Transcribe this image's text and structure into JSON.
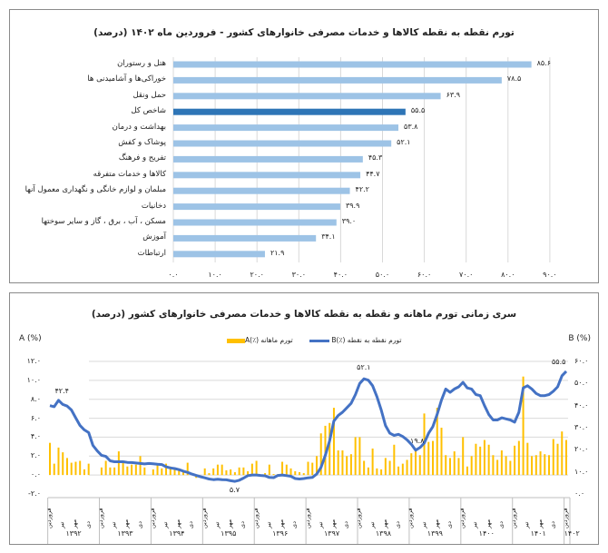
{
  "chart_data": [
    {
      "type": "bar",
      "orientation": "horizontal",
      "title": "تورم نقطه به نقطه کالاها و خدمات مصرفی خانوارهای کشور - فروردین ماه ۱۴۰۲ (درصد)",
      "categories": [
        "هتل و رستوران",
        "خوراکی‌ها و آشامیدنی ها",
        "حمل ونقل",
        "شاخص کل",
        "بهداشت و درمان",
        "پوشاک و کفش",
        "تفریح و فرهنگ",
        "کالاها و خدمات متفرقه",
        "مبلمان و لوازم خانگی و نگهداری معمول آنها",
        "دخانیات",
        "مسکن ، آب ، برق ، گاز و سایر سوختها",
        "آموزش",
        "ارتباطات"
      ],
      "values": [
        85.6,
        78.5,
        63.9,
        55.5,
        53.8,
        52.1,
        45.3,
        44.7,
        42.2,
        39.9,
        39.0,
        34.1,
        21.9
      ],
      "value_labels": [
        "۸۵.۶",
        "۷۸.۵",
        "۶۳.۹",
        "۵۵.۵",
        "۵۳.۸",
        "۵۲.۱",
        "۴۵.۳",
        "۴۴.۷",
        "۴۲.۲",
        "۳۹.۹",
        "۳۹.۰",
        "۳۴.۱",
        "۲۱.۹"
      ],
      "highlight_category": "شاخص کل",
      "xlim": [
        0,
        90
      ],
      "x_tick_labels": [
        "۰.۰",
        "۱۰.۰",
        "۲۰.۰",
        "۳۰.۰",
        "۴۰.۰",
        "۵۰.۰",
        "۶۰.۰",
        "۷۰.۰",
        "۸۰.۰",
        "۹۰.۰"
      ],
      "grid": "vertical",
      "colors": {
        "bar": "#9dc3e6",
        "highlight": "#2e75b6"
      }
    },
    {
      "type": "bar+line",
      "title": "سری زمانی تورم ماهانه و نقطه به نقطه کالاها و خدمات مصرفی خانوارهای کشور (درصد)",
      "ylabel_left": "A (%)",
      "ylabel_right": "B (%)",
      "ylim_left": [
        -2,
        12
      ],
      "ylim_right": [
        0,
        60
      ],
      "y_left_tick_labels": [
        "-۲.۰",
        "۰.۰",
        "۲.۰",
        "۴.۰",
        "۶.۰",
        "۸.۰",
        "۱۰.۰",
        "۱۲.۰"
      ],
      "y_right_tick_labels": [
        "۰.۰",
        "۱۰.۰",
        "۲۰.۰",
        "۳۰.۰",
        "۴۰.۰",
        "۵۰.۰",
        "۶۰.۰"
      ],
      "legend": {
        "placement": "top",
        "items": [
          {
            "label": "تورم نقطه به نقطه (٪)B",
            "color": "#4472c4",
            "kind": "line"
          },
          {
            "label": "تورم ماهانه (٪)A",
            "color": "#ffc000",
            "kind": "bar"
          }
        ]
      },
      "years": [
        "۱۳۹۲",
        "۱۳۹۳",
        "۱۳۹۴",
        "۱۳۹۵",
        "۱۳۹۶",
        "۱۳۹۷",
        "۱۳۹۸",
        "۱۳۹۹",
        "۱۴۰۰",
        "۱۴۰۱",
        "۱۴۰۲"
      ],
      "month_tick_labels": [
        "فروردین",
        "تیر",
        "مهر",
        "دی"
      ],
      "x_start": "فروردین ۱۳۹۲",
      "x_end": "فروردین ۱۴۰۲",
      "series": [
        {
          "name": "تورم ماهانه (٪)A",
          "axis": "left",
          "kind": "bar",
          "values": [
            3.4,
            1.2,
            2.9,
            2.4,
            1.8,
            1.3,
            1.4,
            1.5,
            0.6,
            1.2,
            0.0,
            0.0,
            0.8,
            1.5,
            0.8,
            0.8,
            2.5,
            1.4,
            0.9,
            1.1,
            1.1,
            2.0,
            0.8,
            0.0,
            0.6,
            1.2,
            0.7,
            1.2,
            0.9,
            0.6,
            0.5,
            0.5,
            1.3,
            0.1,
            -0.3,
            0.0,
            0.7,
            0.2,
            0.7,
            1.1,
            1.1,
            0.5,
            0.6,
            0.3,
            0.8,
            0.8,
            0.4,
            1.2,
            1.5,
            0.0,
            0.2,
            1.1,
            0.1,
            0.1,
            1.4,
            1.1,
            0.7,
            0.4,
            0.3,
            0.2,
            1.4,
            1.3,
            2.0,
            4.4,
            5.2,
            5.5,
            7.1,
            2.6,
            2.6,
            2.0,
            2.2,
            4.0,
            4.0,
            1.5,
            0.8,
            2.8,
            0.7,
            0.6,
            1.8,
            1.5,
            3.2,
            0.9,
            1.2,
            1.6,
            2.3,
            2.6,
            2.1,
            6.5,
            3.5,
            3.6,
            7.1,
            5.0,
            2.1,
            1.8,
            2.5,
            1.8,
            4.0,
            0.9,
            2.0,
            3.3,
            3.0,
            3.7,
            3.2,
            2.1,
            1.6,
            2.6,
            2.0,
            1.5,
            3.1,
            3.6,
            10.4,
            3.4,
            2.0,
            2.1,
            2.5,
            2.2,
            2.1,
            3.8,
            3.3,
            4.6,
            3.7
          ]
        },
        {
          "name": "تورم نقطه به نقطه (٪)B",
          "axis": "right",
          "kind": "line",
          "values": [
            40.0,
            39.5,
            42.4,
            40.5,
            39.8,
            38.0,
            34.5,
            31.0,
            29.0,
            27.8,
            22.0,
            19.5,
            17.5,
            17.0,
            15.0,
            14.6,
            14.6,
            14.6,
            14.3,
            14.2,
            14.0,
            13.8,
            13.6,
            13.8,
            13.7,
            13.5,
            13.3,
            12.3,
            11.8,
            11.5,
            11.0,
            10.3,
            9.8,
            9.0,
            8.4,
            7.8,
            7.3,
            6.8,
            6.5,
            6.7,
            6.5,
            6.4,
            6.0,
            5.7,
            6.2,
            7.2,
            8.3,
            8.6,
            8.6,
            8.4,
            8.2,
            7.5,
            7.4,
            8.4,
            8.6,
            8.3,
            8.0,
            7.0,
            6.8,
            7.0,
            7.3,
            7.5,
            9.0,
            12.0,
            17.5,
            24.0,
            33.0,
            35.5,
            37.0,
            39.0,
            41.0,
            45.0,
            50.0,
            52.1,
            51.5,
            49.0,
            44.0,
            38.0,
            31.0,
            27.5,
            26.5,
            27.0,
            26.0,
            24.5,
            22.5,
            19.8,
            21.0,
            23.0,
            27.5,
            30.5,
            36.0,
            42.5,
            47.5,
            46.0,
            47.5,
            48.5,
            50.5,
            48.0,
            47.5,
            45.0,
            44.5,
            40.0,
            36.0,
            33.5,
            33.5,
            34.5,
            34.0,
            33.5,
            32.5,
            37.0,
            48.0,
            49.0,
            47.5,
            45.5,
            44.5,
            44.5,
            45.0,
            46.5,
            48.5,
            53.5,
            55.5
          ]
        }
      ],
      "annotations": [
        {
          "series": "B",
          "label": "۴۲.۴",
          "value": 42.4,
          "month": "خرداد ۱۳۹۲"
        },
        {
          "series": "B",
          "label": "۵.۷",
          "value": 5.7,
          "month": "آبان ۱۳۹۵"
        },
        {
          "series": "B",
          "label": "۵۲.۱",
          "value": 52.1,
          "month": "اردیبهشت ۱۳۹۸"
        },
        {
          "series": "B",
          "label": "۱۹.۸",
          "value": 19.8,
          "month": "اردیبهشت ۱۳۹۹"
        },
        {
          "series": "B",
          "label": "۵۵.۵",
          "value": 55.5,
          "month": "فروردین ۱۴۰۲"
        }
      ],
      "grid": "horizontal"
    }
  ]
}
